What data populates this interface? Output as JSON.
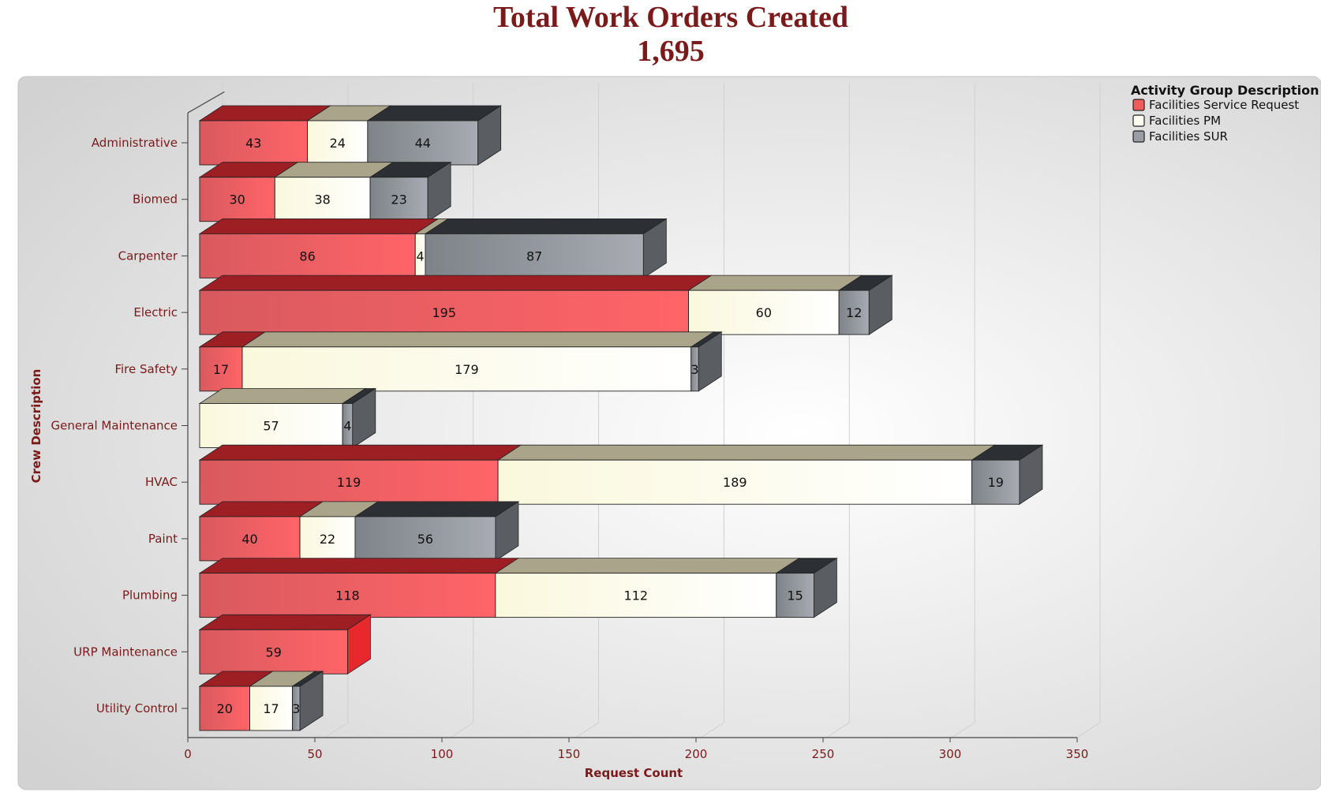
{
  "header": {
    "title": "Total Work Orders Created",
    "subtitle": "1,695"
  },
  "chart_data": {
    "type": "bar",
    "orientation": "horizontal",
    "stacked": true,
    "style": "3d",
    "title": "Total Work Orders Created",
    "subtitle": "1,695",
    "xlabel": "Request Count",
    "ylabel": "Crew Description",
    "xlim": [
      0,
      350
    ],
    "xticks": [
      0,
      50,
      100,
      150,
      200,
      250,
      300,
      350
    ],
    "grid": true,
    "legend_title": "Activity Group Description",
    "legend_position": "top-right",
    "categories": [
      "Administrative",
      "Biomed",
      "Carpenter",
      "Electric",
      "Fire Safety",
      "General Maintenance",
      "HVAC",
      "Paint",
      "Plumbing",
      "URP Maintenance",
      "Utility Control"
    ],
    "series": [
      {
        "name": "Facilities Service Request",
        "color": "#f05b5b",
        "values": [
          43,
          30,
          86,
          195,
          17,
          0,
          119,
          40,
          118,
          59,
          20
        ]
      },
      {
        "name": "Facilities PM",
        "color": "#fdfdf0",
        "values": [
          24,
          38,
          4,
          60,
          179,
          57,
          189,
          22,
          112,
          0,
          17
        ]
      },
      {
        "name": "Facilities SUR",
        "color": "#9a9ea4",
        "values": [
          44,
          23,
          87,
          12,
          3,
          4,
          19,
          56,
          15,
          0,
          3
        ]
      }
    ]
  }
}
